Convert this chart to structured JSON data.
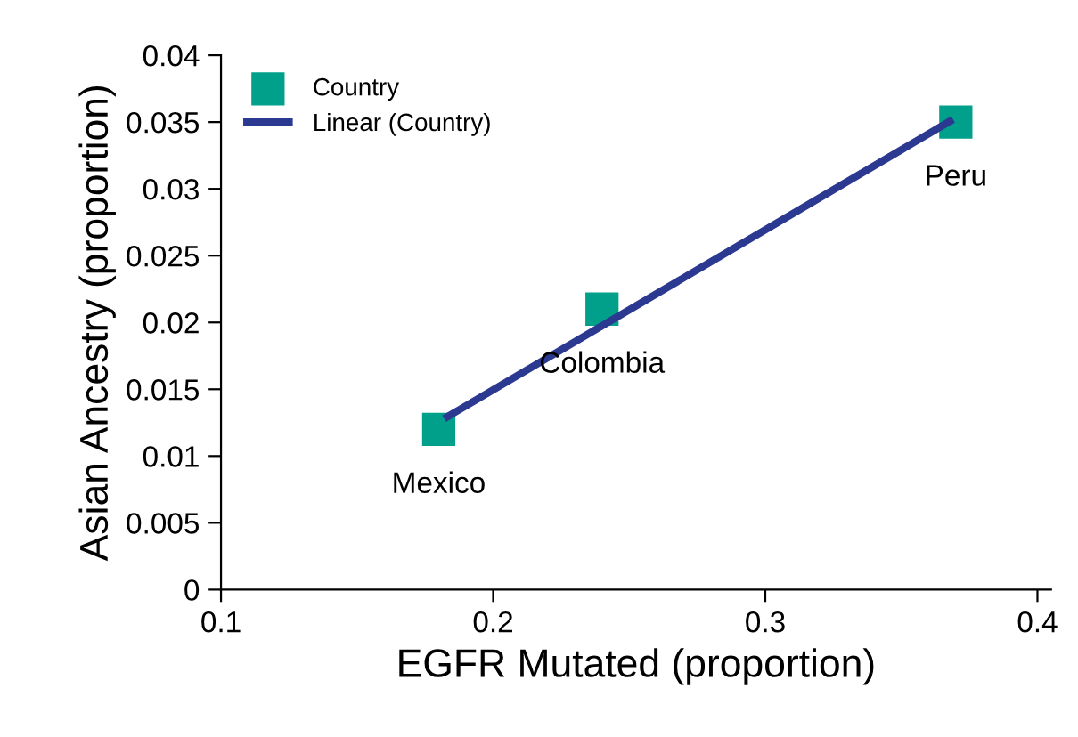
{
  "chart_data": {
    "type": "scatter",
    "xlabel": "EGFR Mutated (proportion)",
    "ylabel": "Asian Ancestry (proportion)",
    "series": [
      {
        "name": "Country",
        "color": "#00a08a",
        "marker": "square",
        "x": [
          0.18,
          0.24,
          0.37
        ],
        "values": [
          0.012,
          0.021,
          0.035
        ]
      },
      {
        "name": "Linear (Country)",
        "type": "line",
        "color": "#2b3990",
        "marker": "none",
        "line_style": "solid",
        "x": [
          0.182,
          0.369
        ],
        "values": [
          0.0128,
          0.0352
        ]
      }
    ],
    "annotations": [
      {
        "text": "Mexico",
        "x": 0.18,
        "y": 0.012
      },
      {
        "text": "Colombia",
        "x": 0.24,
        "y": 0.021
      },
      {
        "text": "Peru",
        "x": 0.37,
        "y": 0.035
      }
    ],
    "xlim": [
      0.1,
      0.405
    ],
    "xticks": [
      0.1,
      0.2,
      0.3,
      0.4
    ],
    "ylim": [
      0,
      0.04
    ],
    "yticks": [
      0,
      0.005,
      0.01,
      0.015,
      0.02,
      0.025,
      0.03,
      0.035,
      0.04
    ],
    "grid": false,
    "legend": "top left"
  }
}
